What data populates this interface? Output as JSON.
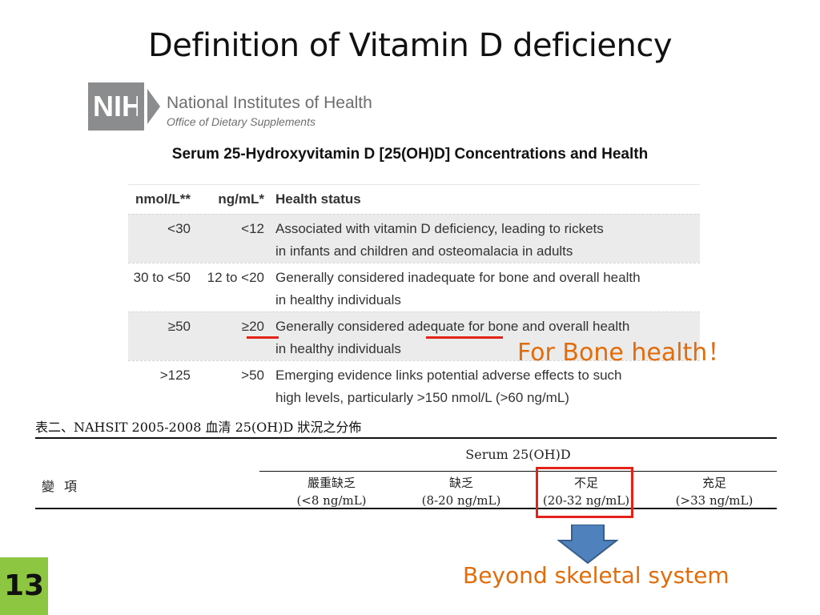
{
  "slide": {
    "title": "Definition of Vitamin D deficiency",
    "page_number": "13"
  },
  "logo": {
    "abbr": "NIH",
    "name": "National Institutes of Health",
    "subtitle": "Office of Dietary Supplements"
  },
  "nih_table": {
    "caption": "Serum 25-Hydroxyvitamin D [25(OH)D] Concentrations and Health",
    "headers": [
      "nmol/L**",
      "ng/mL*",
      "Health status"
    ],
    "rows": [
      {
        "nmol": "<30",
        "ng": "<12",
        "status_line1": "Associated with vitamin D deficiency, leading to rickets",
        "status_line2": "in infants and children and osteomalacia in adults"
      },
      {
        "nmol": "30 to <50",
        "ng": "12 to <20",
        "status_line1": "Generally considered inadequate for bone and overall health",
        "status_line2": "in healthy individuals"
      },
      {
        "nmol": "≥50",
        "ng": "≥20",
        "status_line1": "Generally considered adequate for bone and overall health",
        "status_line2": "in healthy individuals"
      },
      {
        "nmol": ">125",
        "ng": ">50",
        "status_line1": "Emerging evidence links potential adverse effects to such",
        "status_line2": "high levels, particularly >150 nmol/L (>60 ng/mL)"
      }
    ]
  },
  "annotations": {
    "bone_health": "For Bone health！",
    "beyond": "Beyond skeletal system",
    "accent_color": "#e36c0a",
    "highlight_color": "#e2231a"
  },
  "nahsit_table": {
    "title": "表二、NAHSIT 2005-2008 血清 25(OH)D 狀況之分佈",
    "group_header": "Serum 25(OH)D",
    "variable_label": "變項",
    "categories": [
      {
        "name": "嚴重缺乏",
        "range": "(<8 ng/mL)"
      },
      {
        "name": "缺乏",
        "range": "(8-20 ng/mL)"
      },
      {
        "name": "不足",
        "range": "(20-32 ng/mL)"
      },
      {
        "name": "充足",
        "range": "(>33 ng/mL)"
      }
    ]
  }
}
